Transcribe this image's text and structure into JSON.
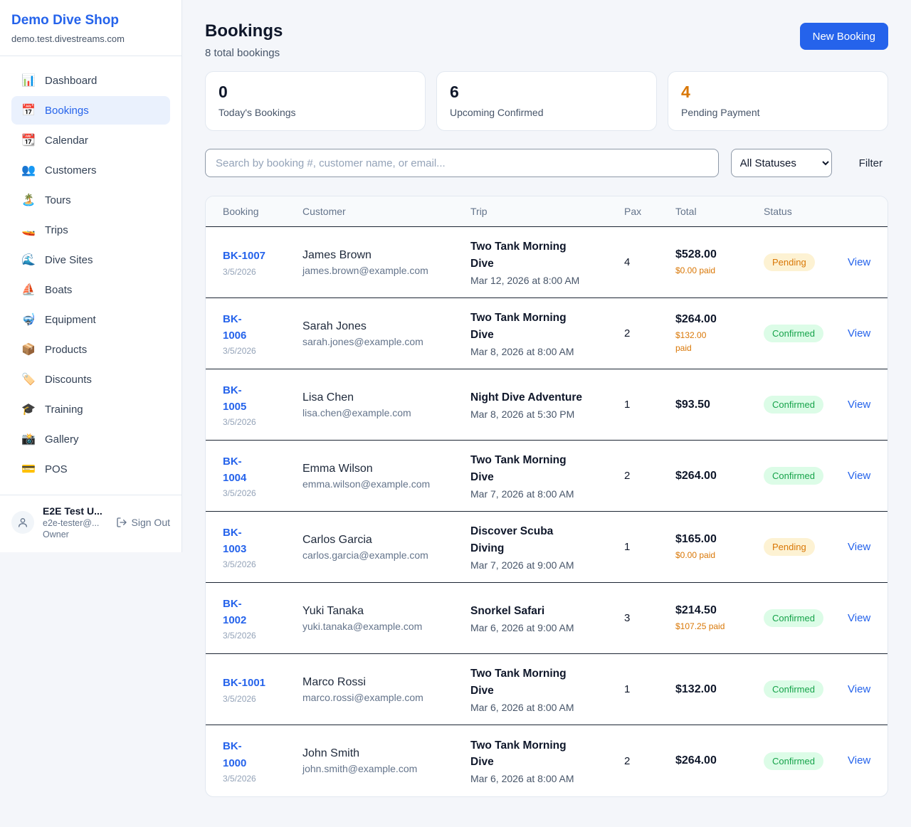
{
  "colors": {
    "accent_blue": "#2563eb",
    "pending_text": "#d97706",
    "pending_bg": "#fdf2d3",
    "confirmed_text": "#16a34a",
    "confirmed_bg": "#dcfce7",
    "dark_value": "#0f172a",
    "paid_orange": "#d97706"
  },
  "sidebar": {
    "brand": {
      "name": "Demo Dive Shop",
      "domain": "demo.test.divestreams.com"
    },
    "items": [
      {
        "icon": "bar-chart-icon",
        "glyph": "📊",
        "label": "Dashboard",
        "active": false
      },
      {
        "icon": "calendar-icon",
        "glyph": "📅",
        "label": "Bookings",
        "active": true
      },
      {
        "icon": "tear-off-calendar-icon",
        "glyph": "📆",
        "label": "Calendar",
        "active": false
      },
      {
        "icon": "people-icon",
        "glyph": "👥",
        "label": "Customers",
        "active": false
      },
      {
        "icon": "island-icon",
        "glyph": "🏝️",
        "label": "Tours",
        "active": false
      },
      {
        "icon": "speedboat-icon",
        "glyph": "🚤",
        "label": "Trips",
        "active": false
      },
      {
        "icon": "wave-icon",
        "glyph": "🌊",
        "label": "Dive Sites",
        "active": false
      },
      {
        "icon": "sailboat-icon",
        "glyph": "⛵",
        "label": "Boats",
        "active": false
      },
      {
        "icon": "diving-mask-icon",
        "glyph": "🤿",
        "label": "Equipment",
        "active": false
      },
      {
        "icon": "package-icon",
        "glyph": "📦",
        "label": "Products",
        "active": false
      },
      {
        "icon": "tag-icon",
        "glyph": "🏷️",
        "label": "Discounts",
        "active": false
      },
      {
        "icon": "graduation-cap-icon",
        "glyph": "🎓",
        "label": "Training",
        "active": false
      },
      {
        "icon": "camera-icon",
        "glyph": "📸",
        "label": "Gallery",
        "active": false
      },
      {
        "icon": "credit-card-icon",
        "glyph": "💳",
        "label": "POS",
        "active": false
      }
    ],
    "user": {
      "name": "E2E Test U...",
      "email": "e2e-tester@...",
      "role": "Owner",
      "signout_label": "Sign Out"
    }
  },
  "header": {
    "title": "Bookings",
    "subtitle": "8 total bookings",
    "new_booking_label": "New Booking"
  },
  "stats": [
    {
      "value": "0",
      "label": "Today's Bookings",
      "value_color": "#0f172a"
    },
    {
      "value": "6",
      "label": "Upcoming Confirmed",
      "value_color": "#0f172a"
    },
    {
      "value": "4",
      "label": "Pending Payment",
      "value_color": "#d97706"
    }
  ],
  "filters": {
    "search_placeholder": "Search by booking #, customer name, or email...",
    "status_selected": "All Statuses",
    "filter_label": "Filter"
  },
  "table": {
    "columns": [
      "Booking",
      "Customer",
      "Trip",
      "Pax",
      "Total",
      "Status"
    ],
    "rows": [
      {
        "id_lines": [
          "BK-1007"
        ],
        "date": "3/5/2026",
        "customer_name": "James Brown",
        "customer_email": "james.brown@example.com",
        "trip_lines": [
          "Two Tank Morning",
          "Dive"
        ],
        "trip_datetime": "Mar 12, 2026 at 8:00 AM",
        "pax": "4",
        "total": "$528.00",
        "paid_lines": [
          "$0.00 paid"
        ],
        "status": "Pending",
        "action": "View"
      },
      {
        "id_lines": [
          "BK-",
          "1006"
        ],
        "date": "3/5/2026",
        "customer_name": "Sarah Jones",
        "customer_email": "sarah.jones@example.com",
        "trip_lines": [
          "Two Tank Morning",
          "Dive"
        ],
        "trip_datetime": "Mar 8, 2026 at 8:00 AM",
        "pax": "2",
        "total": "$264.00",
        "paid_lines": [
          "$132.00",
          "paid"
        ],
        "status": "Confirmed",
        "action": "View"
      },
      {
        "id_lines": [
          "BK-",
          "1005"
        ],
        "date": "3/5/2026",
        "customer_name": "Lisa Chen",
        "customer_email": "lisa.chen@example.com",
        "trip_lines": [
          "Night Dive Adventure"
        ],
        "trip_datetime": "Mar 8, 2026 at 5:30 PM",
        "pax": "1",
        "total": "$93.50",
        "paid_lines": [],
        "status": "Confirmed",
        "action": "View"
      },
      {
        "id_lines": [
          "BK-",
          "1004"
        ],
        "date": "3/5/2026",
        "customer_name": "Emma Wilson",
        "customer_email": "emma.wilson@example.com",
        "trip_lines": [
          "Two Tank Morning",
          "Dive"
        ],
        "trip_datetime": "Mar 7, 2026 at 8:00 AM",
        "pax": "2",
        "total": "$264.00",
        "paid_lines": [],
        "status": "Confirmed",
        "action": "View"
      },
      {
        "id_lines": [
          "BK-",
          "1003"
        ],
        "date": "3/5/2026",
        "customer_name": "Carlos Garcia",
        "customer_email": "carlos.garcia@example.com",
        "trip_lines": [
          "Discover Scuba",
          "Diving"
        ],
        "trip_datetime": "Mar 7, 2026 at 9:00 AM",
        "pax": "1",
        "total": "$165.00",
        "paid_lines": [
          "$0.00 paid"
        ],
        "status": "Pending",
        "action": "View"
      },
      {
        "id_lines": [
          "BK-",
          "1002"
        ],
        "date": "3/5/2026",
        "customer_name": "Yuki Tanaka",
        "customer_email": "yuki.tanaka@example.com",
        "trip_lines": [
          "Snorkel Safari"
        ],
        "trip_datetime": "Mar 6, 2026 at 9:00 AM",
        "pax": "3",
        "total": "$214.50",
        "paid_lines": [
          "$107.25 paid"
        ],
        "status": "Confirmed",
        "action": "View"
      },
      {
        "id_lines": [
          "BK-1001"
        ],
        "date": "3/5/2026",
        "customer_name": "Marco Rossi",
        "customer_email": "marco.rossi@example.com",
        "trip_lines": [
          "Two Tank Morning",
          "Dive"
        ],
        "trip_datetime": "Mar 6, 2026 at 8:00 AM",
        "pax": "1",
        "total": "$132.00",
        "paid_lines": [],
        "status": "Confirmed",
        "action": "View"
      },
      {
        "id_lines": [
          "BK-",
          "1000"
        ],
        "date": "3/5/2026",
        "customer_name": "John Smith",
        "customer_email": "john.smith@example.com",
        "trip_lines": [
          "Two Tank Morning",
          "Dive"
        ],
        "trip_datetime": "Mar 6, 2026 at 8:00 AM",
        "pax": "2",
        "total": "$264.00",
        "paid_lines": [],
        "status": "Confirmed",
        "action": "View"
      }
    ]
  }
}
